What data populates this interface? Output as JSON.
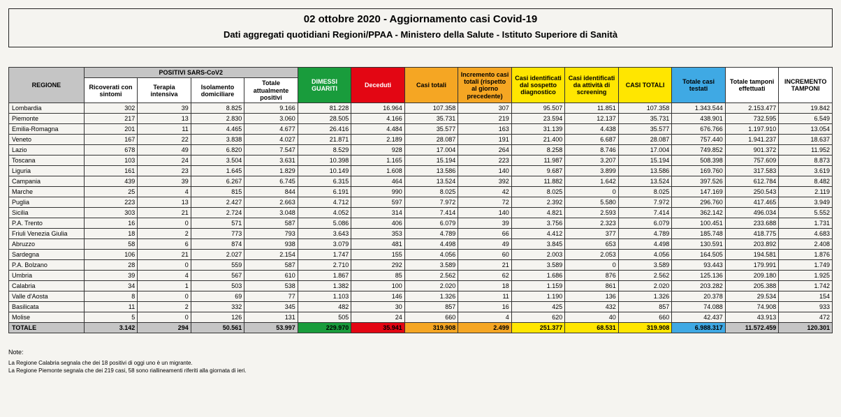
{
  "title_line1": "02 ottobre 2020 - Aggiornamento casi Covid-19",
  "title_line2": "Dati aggregati quotidiani Regioni/PPAA - Ministero della Salute - Istituto Superiore di Sanità",
  "headers": {
    "regione": "REGIONE",
    "positivi_group": "POSITIVI SARS-CoV2",
    "ricoverati": "Ricoverati con sintomi",
    "terapia": "Terapia intensiva",
    "isolamento": "Isolamento domiciliare",
    "tot_positivi": "Totale attualmente positivi",
    "guariti": "DIMESSI GUARITI",
    "deceduti": "Deceduti",
    "casi_totali": "Casi totali",
    "incremento_casi": "Incremento casi totali (rispetto al giorno precedente)",
    "casi_sospetto": "Casi identificati dal sospetto diagnostico",
    "casi_screening": "Casi identificati da attività di screening",
    "casi_totali2": "CASI TOTALI",
    "casi_testati": "Totale casi testati",
    "tamponi": "Totale tamponi effettuati",
    "incr_tamponi": "INCREMENTO TAMPONI"
  },
  "rows": [
    {
      "r": "Lombardia",
      "v": [
        "302",
        "39",
        "8.825",
        "9.166",
        "81.228",
        "16.964",
        "107.358",
        "307",
        "95.507",
        "11.851",
        "107.358",
        "1.343.544",
        "2.153.477",
        "19.842"
      ]
    },
    {
      "r": "Piemonte",
      "v": [
        "217",
        "13",
        "2.830",
        "3.060",
        "28.505",
        "4.166",
        "35.731",
        "219",
        "23.594",
        "12.137",
        "35.731",
        "438.901",
        "732.595",
        "6.549"
      ]
    },
    {
      "r": "Emilia-Romagna",
      "v": [
        "201",
        "11",
        "4.465",
        "4.677",
        "26.416",
        "4.484",
        "35.577",
        "163",
        "31.139",
        "4.438",
        "35.577",
        "676.766",
        "1.197.910",
        "13.054"
      ]
    },
    {
      "r": "Veneto",
      "v": [
        "167",
        "22",
        "3.838",
        "4.027",
        "21.871",
        "2.189",
        "28.087",
        "191",
        "21.400",
        "6.687",
        "28.087",
        "757.440",
        "1.941.237",
        "18.637"
      ]
    },
    {
      "r": "Lazio",
      "v": [
        "678",
        "49",
        "6.820",
        "7.547",
        "8.529",
        "928",
        "17.004",
        "264",
        "8.258",
        "8.746",
        "17.004",
        "749.852",
        "901.372",
        "11.952"
      ]
    },
    {
      "r": "Toscana",
      "v": [
        "103",
        "24",
        "3.504",
        "3.631",
        "10.398",
        "1.165",
        "15.194",
        "223",
        "11.987",
        "3.207",
        "15.194",
        "508.398",
        "757.609",
        "8.873"
      ]
    },
    {
      "r": "Liguria",
      "v": [
        "161",
        "23",
        "1.645",
        "1.829",
        "10.149",
        "1.608",
        "13.586",
        "140",
        "9.687",
        "3.899",
        "13.586",
        "169.760",
        "317.583",
        "3.619"
      ]
    },
    {
      "r": "Campania",
      "v": [
        "439",
        "39",
        "6.267",
        "6.745",
        "6.315",
        "464",
        "13.524",
        "392",
        "11.882",
        "1.642",
        "13.524",
        "397.526",
        "612.784",
        "8.482"
      ]
    },
    {
      "r": "Marche",
      "v": [
        "25",
        "4",
        "815",
        "844",
        "6.191",
        "990",
        "8.025",
        "42",
        "8.025",
        "0",
        "8.025",
        "147.169",
        "250.543",
        "2.119"
      ]
    },
    {
      "r": "Puglia",
      "v": [
        "223",
        "13",
        "2.427",
        "2.663",
        "4.712",
        "597",
        "7.972",
        "72",
        "2.392",
        "5.580",
        "7.972",
        "296.760",
        "417.465",
        "3.949"
      ]
    },
    {
      "r": "Sicilia",
      "v": [
        "303",
        "21",
        "2.724",
        "3.048",
        "4.052",
        "314",
        "7.414",
        "140",
        "4.821",
        "2.593",
        "7.414",
        "362.142",
        "496.034",
        "5.552"
      ]
    },
    {
      "r": "P.A. Trento",
      "v": [
        "16",
        "0",
        "571",
        "587",
        "5.086",
        "406",
        "6.079",
        "39",
        "3.756",
        "2.323",
        "6.079",
        "100.451",
        "233.688",
        "1.731"
      ]
    },
    {
      "r": "Friuli Venezia Giulia",
      "v": [
        "18",
        "2",
        "773",
        "793",
        "3.643",
        "353",
        "4.789",
        "66",
        "4.412",
        "377",
        "4.789",
        "185.748",
        "418.775",
        "4.683"
      ]
    },
    {
      "r": "Abruzzo",
      "v": [
        "58",
        "6",
        "874",
        "938",
        "3.079",
        "481",
        "4.498",
        "49",
        "3.845",
        "653",
        "4.498",
        "130.591",
        "203.892",
        "2.408"
      ]
    },
    {
      "r": "Sardegna",
      "v": [
        "106",
        "21",
        "2.027",
        "2.154",
        "1.747",
        "155",
        "4.056",
        "60",
        "2.003",
        "2.053",
        "4.056",
        "164.505",
        "194.581",
        "1.876"
      ]
    },
    {
      "r": "P.A. Bolzano",
      "v": [
        "28",
        "0",
        "559",
        "587",
        "2.710",
        "292",
        "3.589",
        "21",
        "3.589",
        "0",
        "3.589",
        "93.443",
        "179.991",
        "1.749"
      ]
    },
    {
      "r": "Umbria",
      "v": [
        "39",
        "4",
        "567",
        "610",
        "1.867",
        "85",
        "2.562",
        "62",
        "1.686",
        "876",
        "2.562",
        "125.136",
        "209.180",
        "1.925"
      ]
    },
    {
      "r": "Calabria",
      "v": [
        "34",
        "1",
        "503",
        "538",
        "1.382",
        "100",
        "2.020",
        "18",
        "1.159",
        "861",
        "2.020",
        "203.282",
        "205.388",
        "1.742"
      ]
    },
    {
      "r": "Valle d'Aosta",
      "v": [
        "8",
        "0",
        "69",
        "77",
        "1.103",
        "146",
        "1.326",
        "11",
        "1.190",
        "136",
        "1.326",
        "20.378",
        "29.534",
        "154"
      ]
    },
    {
      "r": "Basilicata",
      "v": [
        "11",
        "2",
        "332",
        "345",
        "482",
        "30",
        "857",
        "16",
        "425",
        "432",
        "857",
        "74.088",
        "74.908",
        "933"
      ]
    },
    {
      "r": "Molise",
      "v": [
        "5",
        "0",
        "126",
        "131",
        "505",
        "24",
        "660",
        "4",
        "620",
        "40",
        "660",
        "42.437",
        "43.913",
        "472"
      ]
    }
  ],
  "totale_label": "TOTALE",
  "totale": [
    "3.142",
    "294",
    "50.561",
    "53.997",
    "229.970",
    "35.941",
    "319.908",
    "2.499",
    "251.377",
    "68.531",
    "319.908",
    "6.988.317",
    "11.572.459",
    "120.301"
  ],
  "totale_bg": [
    "#c5c5c5",
    "#c5c5c5",
    "#c5c5c5",
    "#c5c5c5",
    "#199c3c",
    "#e30613",
    "#f5a623",
    "#f5a623",
    "#ffe600",
    "#ffe600",
    "#ffe600",
    "#3fa9e4",
    "#c5c5c5",
    "#c5c5c5"
  ],
  "notes_header": "Note:",
  "notes": [
    "La Regione Calabria segnala che dei 18 positivi di oggi uno è un migrante.",
    "La Regione Piemonte segnala che dei 219 casi, 58 sono riallineamenti riferiti alla giornata di ieri."
  ]
}
